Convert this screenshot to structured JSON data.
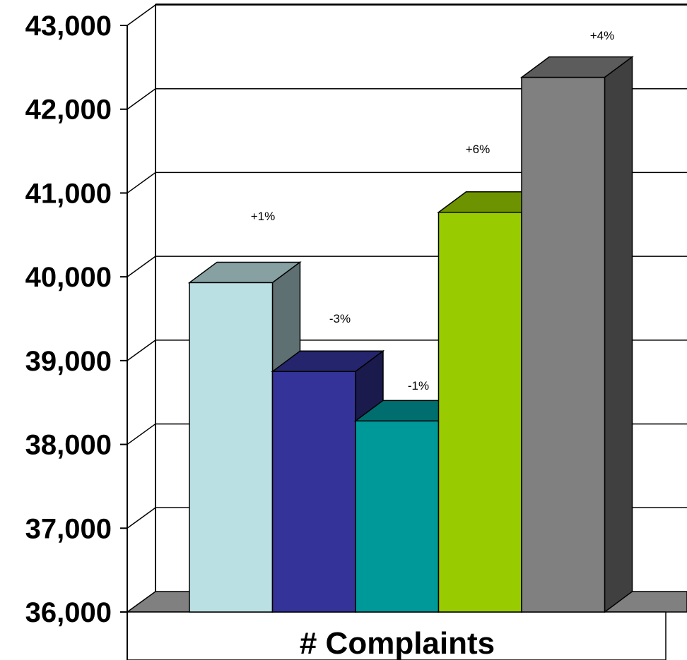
{
  "chart_data": {
    "type": "bar",
    "style": "3d-clustered",
    "categories": [
      "# Complaints"
    ],
    "series": [
      {
        "values": [
          39930
        ],
        "color": "#BBE0E3",
        "label": ""
      },
      {
        "values": [
          38870
        ],
        "color": "#333399",
        "label": "+1%"
      },
      {
        "values": [
          38280
        ],
        "color": "#009999",
        "label": "-3%"
      },
      {
        "values": [
          40770
        ],
        "color": "#99CC00",
        "label": "-1%"
      },
      {
        "values": [
          42380
        ],
        "color": "#808080",
        "label": "+6%"
      }
    ],
    "extra_labels": [
      "+4%"
    ],
    "ylim": [
      36000,
      43000
    ],
    "yticks": [
      "36,000",
      "37,000",
      "38,000",
      "39,000",
      "40,000",
      "41,000",
      "42,000",
      "43,000"
    ],
    "grid": true,
    "legend": "none",
    "title": "",
    "xlabel": "",
    "ylabel": ""
  }
}
